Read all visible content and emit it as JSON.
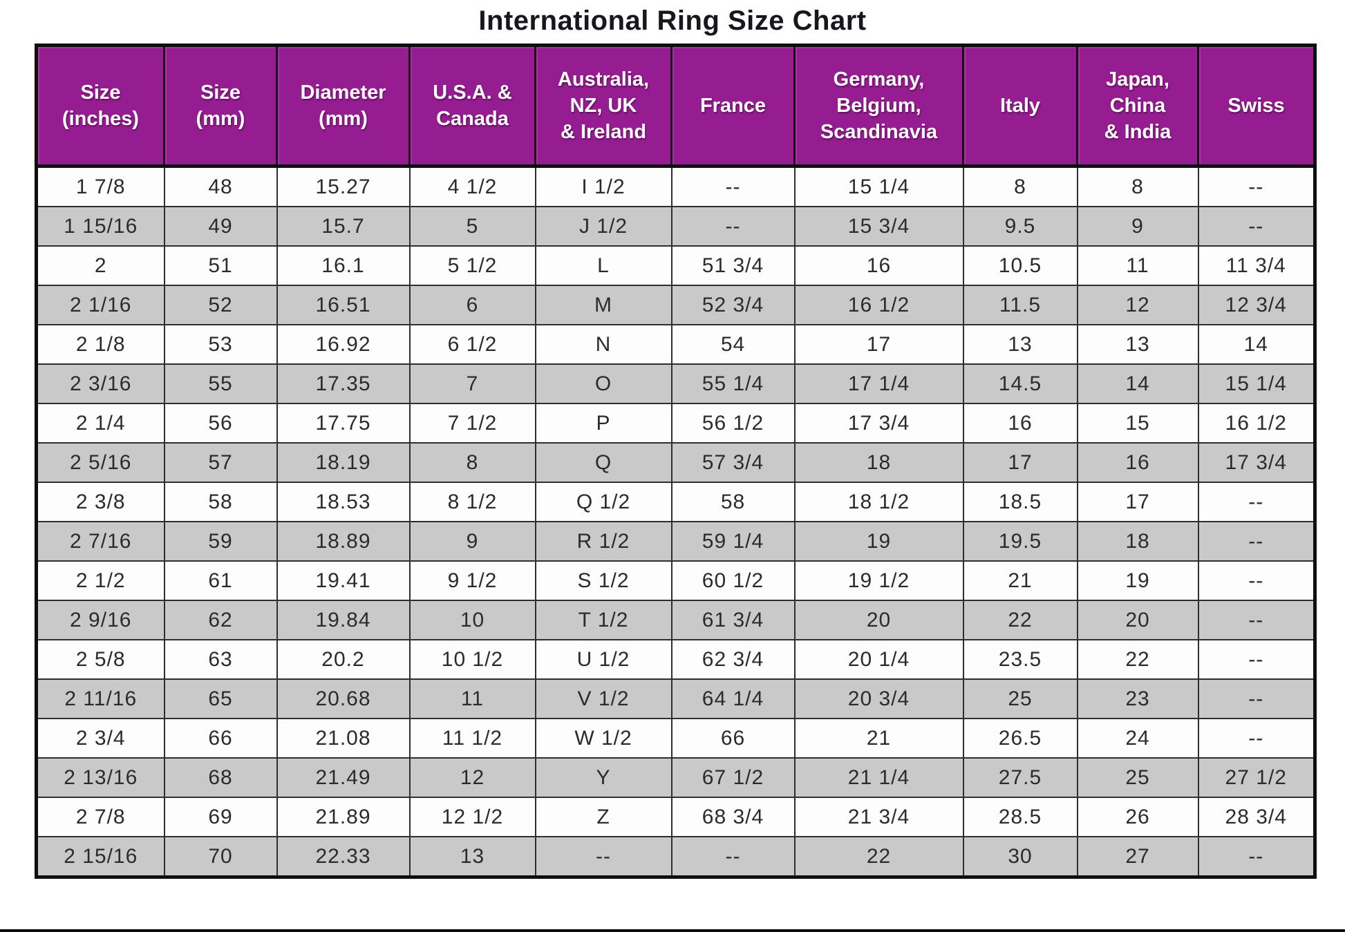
{
  "page": {
    "title": "International Ring Size Chart"
  },
  "colors": {
    "header_bg": "#961D91",
    "row_even_bg": "#C9C9C9",
    "row_odd_bg": "#FDFDFD",
    "grid_border": "#2E2E2E",
    "outer_border": "#0E0E0E",
    "header_text": "#FFFFFF"
  },
  "table": {
    "headers": [
      "Size\n(inches)",
      "Size\n(mm)",
      "Diameter\n(mm)",
      "U.S.A. &\nCanada",
      "Australia,\nNZ, UK\n& Ireland",
      "France",
      "Germany,\nBelgium,\nScandinavia",
      "Italy",
      "Japan,\nChina\n& India",
      "Swiss"
    ]
  },
  "chart_data": {
    "type": "table",
    "title": "International Ring Size Chart",
    "columns": [
      "Size (inches)",
      "Size (mm)",
      "Diameter (mm)",
      "U.S.A. & Canada",
      "Australia, NZ, UK & Ireland",
      "France",
      "Germany, Belgium, Scandinavia",
      "Italy",
      "Japan, China & India",
      "Swiss"
    ],
    "rows": [
      [
        "1 7/8",
        "48",
        "15.27",
        "4 1/2",
        "I 1/2",
        "--",
        "15 1/4",
        "8",
        "8",
        "--"
      ],
      [
        "1 15/16",
        "49",
        "15.7",
        "5",
        "J 1/2",
        "--",
        "15 3/4",
        "9.5",
        "9",
        "--"
      ],
      [
        "2",
        "51",
        "16.1",
        "5 1/2",
        "L",
        "51 3/4",
        "16",
        "10.5",
        "11",
        "11 3/4"
      ],
      [
        "2 1/16",
        "52",
        "16.51",
        "6",
        "M",
        "52 3/4",
        "16 1/2",
        "11.5",
        "12",
        "12 3/4"
      ],
      [
        "2 1/8",
        "53",
        "16.92",
        "6 1/2",
        "N",
        "54",
        "17",
        "13",
        "13",
        "14"
      ],
      [
        "2 3/16",
        "55",
        "17.35",
        "7",
        "O",
        "55 1/4",
        "17 1/4",
        "14.5",
        "14",
        "15 1/4"
      ],
      [
        "2 1/4",
        "56",
        "17.75",
        "7 1/2",
        "P",
        "56 1/2",
        "17 3/4",
        "16",
        "15",
        "16 1/2"
      ],
      [
        "2 5/16",
        "57",
        "18.19",
        "8",
        "Q",
        "57 3/4",
        "18",
        "17",
        "16",
        "17 3/4"
      ],
      [
        "2 3/8",
        "58",
        "18.53",
        "8 1/2",
        "Q 1/2",
        "58",
        "18 1/2",
        "18.5",
        "17",
        "--"
      ],
      [
        "2 7/16",
        "59",
        "18.89",
        "9",
        "R 1/2",
        "59 1/4",
        "19",
        "19.5",
        "18",
        "--"
      ],
      [
        "2 1/2",
        "61",
        "19.41",
        "9 1/2",
        "S 1/2",
        "60 1/2",
        "19 1/2",
        "21",
        "19",
        "--"
      ],
      [
        "2 9/16",
        "62",
        "19.84",
        "10",
        "T 1/2",
        "61 3/4",
        "20",
        "22",
        "20",
        "--"
      ],
      [
        "2 5/8",
        "63",
        "20.2",
        "10 1/2",
        "U 1/2",
        "62 3/4",
        "20 1/4",
        "23.5",
        "22",
        "--"
      ],
      [
        "2 11/16",
        "65",
        "20.68",
        "11",
        "V 1/2",
        "64 1/4",
        "20 3/4",
        "25",
        "23",
        "--"
      ],
      [
        "2 3/4",
        "66",
        "21.08",
        "11 1/2",
        "W 1/2",
        "66",
        "21",
        "26.5",
        "24",
        "--"
      ],
      [
        "2 13/16",
        "68",
        "21.49",
        "12",
        "Y",
        "67 1/2",
        "21 1/4",
        "27.5",
        "25",
        "27 1/2"
      ],
      [
        "2 7/8",
        "69",
        "21.89",
        "12 1/2",
        "Z",
        "68 3/4",
        "21 3/4",
        "28.5",
        "26",
        "28 3/4"
      ],
      [
        "2 15/16",
        "70",
        "22.33",
        "13",
        "--",
        "--",
        "22",
        "30",
        "27",
        "--"
      ]
    ]
  }
}
